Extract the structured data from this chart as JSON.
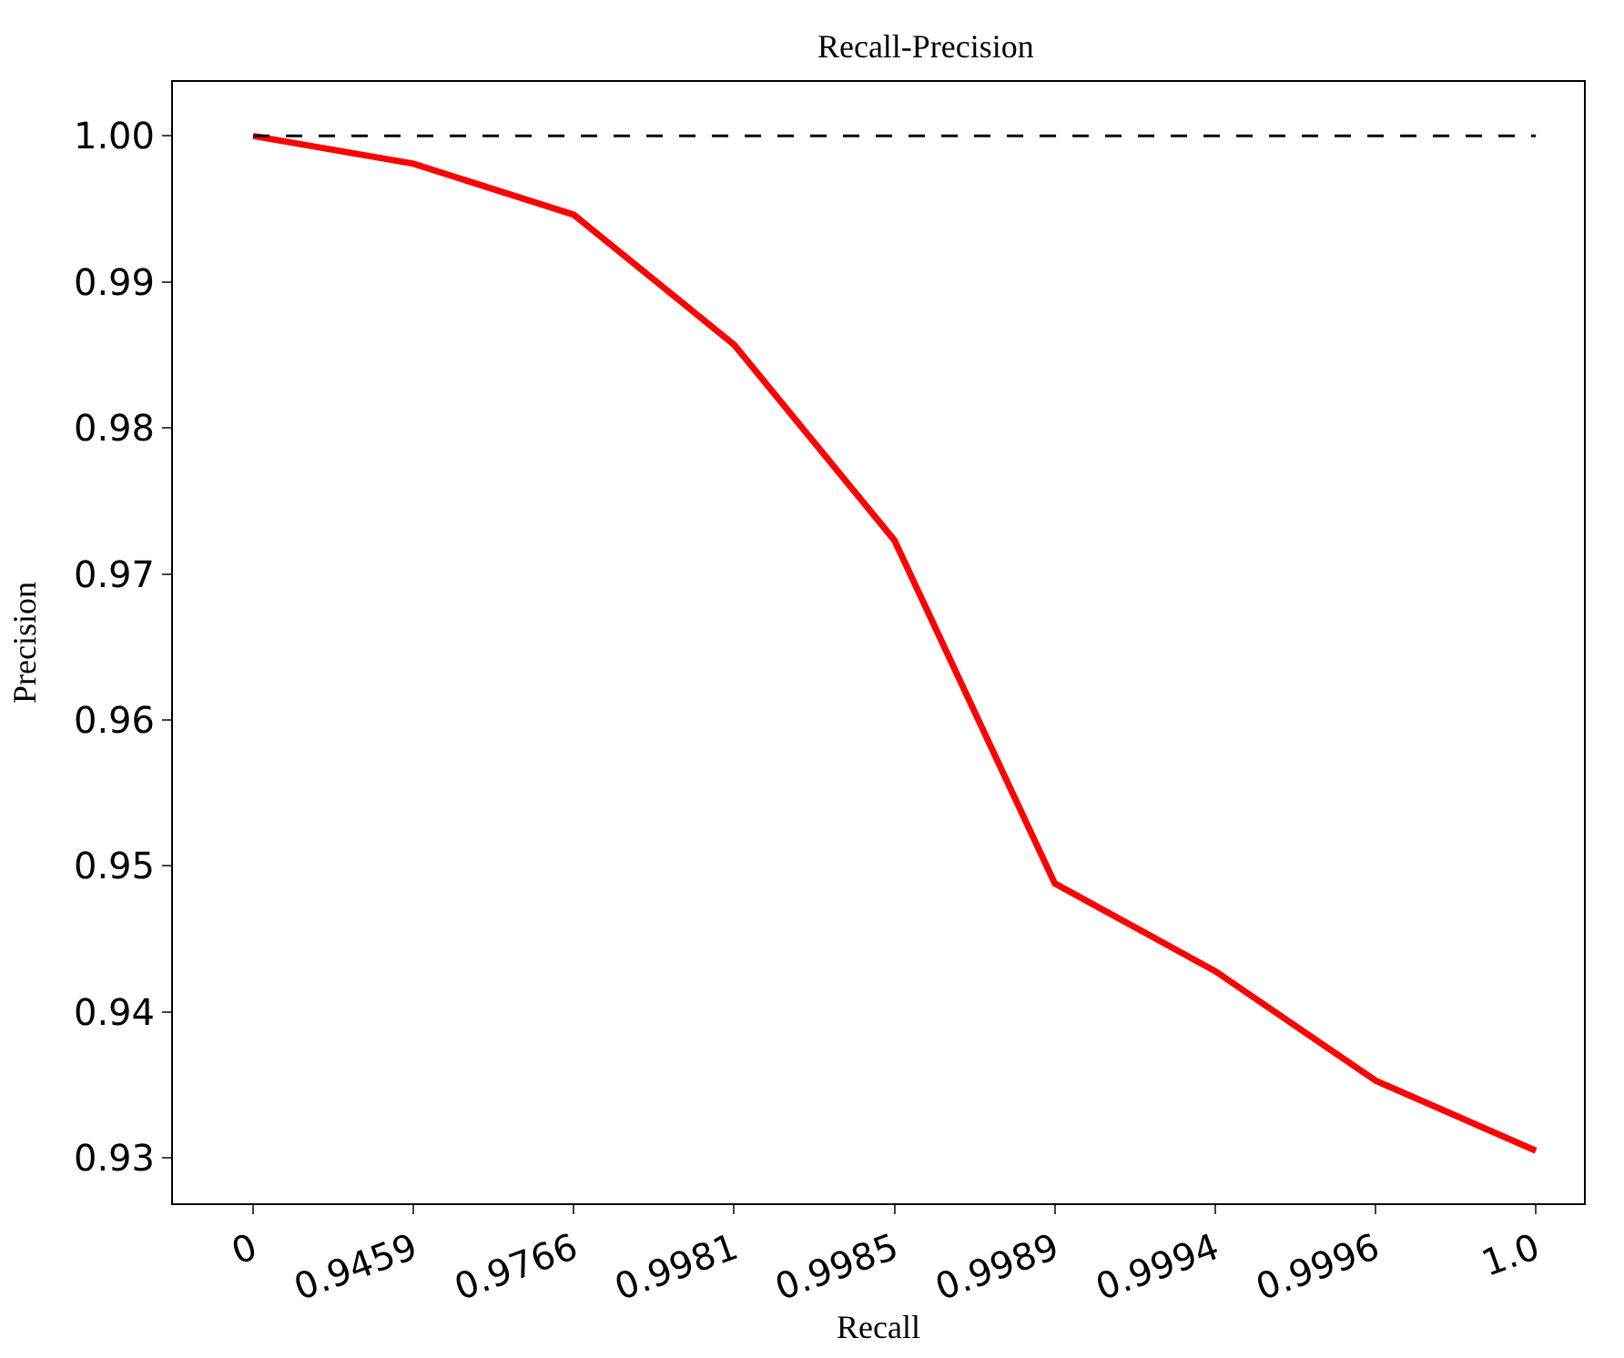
{
  "chart_data": {
    "type": "line",
    "title": "Recall-Precision",
    "xlabel": "Recall",
    "ylabel": "Precision",
    "categories": [
      "0",
      "0.9459",
      "0.9766",
      "0.9981",
      "0.9985",
      "0.9989",
      "0.9994",
      "0.9996",
      "1.0"
    ],
    "series": [
      {
        "color": "#ff0000",
        "values": [
          1.0,
          0.9981,
          0.9946,
          0.9857,
          0.9723,
          0.9488,
          0.9428,
          0.9353,
          0.9305
        ]
      }
    ],
    "ylim": [
      0.9269,
      1.0037
    ],
    "yticks": [
      {
        "value": 0.93,
        "label": "0.93"
      },
      {
        "value": 0.94,
        "label": "0.94"
      },
      {
        "value": 0.95,
        "label": "0.95"
      },
      {
        "value": 0.96,
        "label": "0.96"
      },
      {
        "value": 0.97,
        "label": "0.97"
      },
      {
        "value": 0.98,
        "label": "0.98"
      },
      {
        "value": 0.99,
        "label": "0.99"
      },
      {
        "value": 1.0,
        "label": "1.00"
      }
    ],
    "ref_lines": [
      {
        "axis": "y",
        "value": 1.0,
        "color": "#000000",
        "line_style": "dashed"
      }
    ],
    "marker": "none",
    "line_style": "solid"
  }
}
